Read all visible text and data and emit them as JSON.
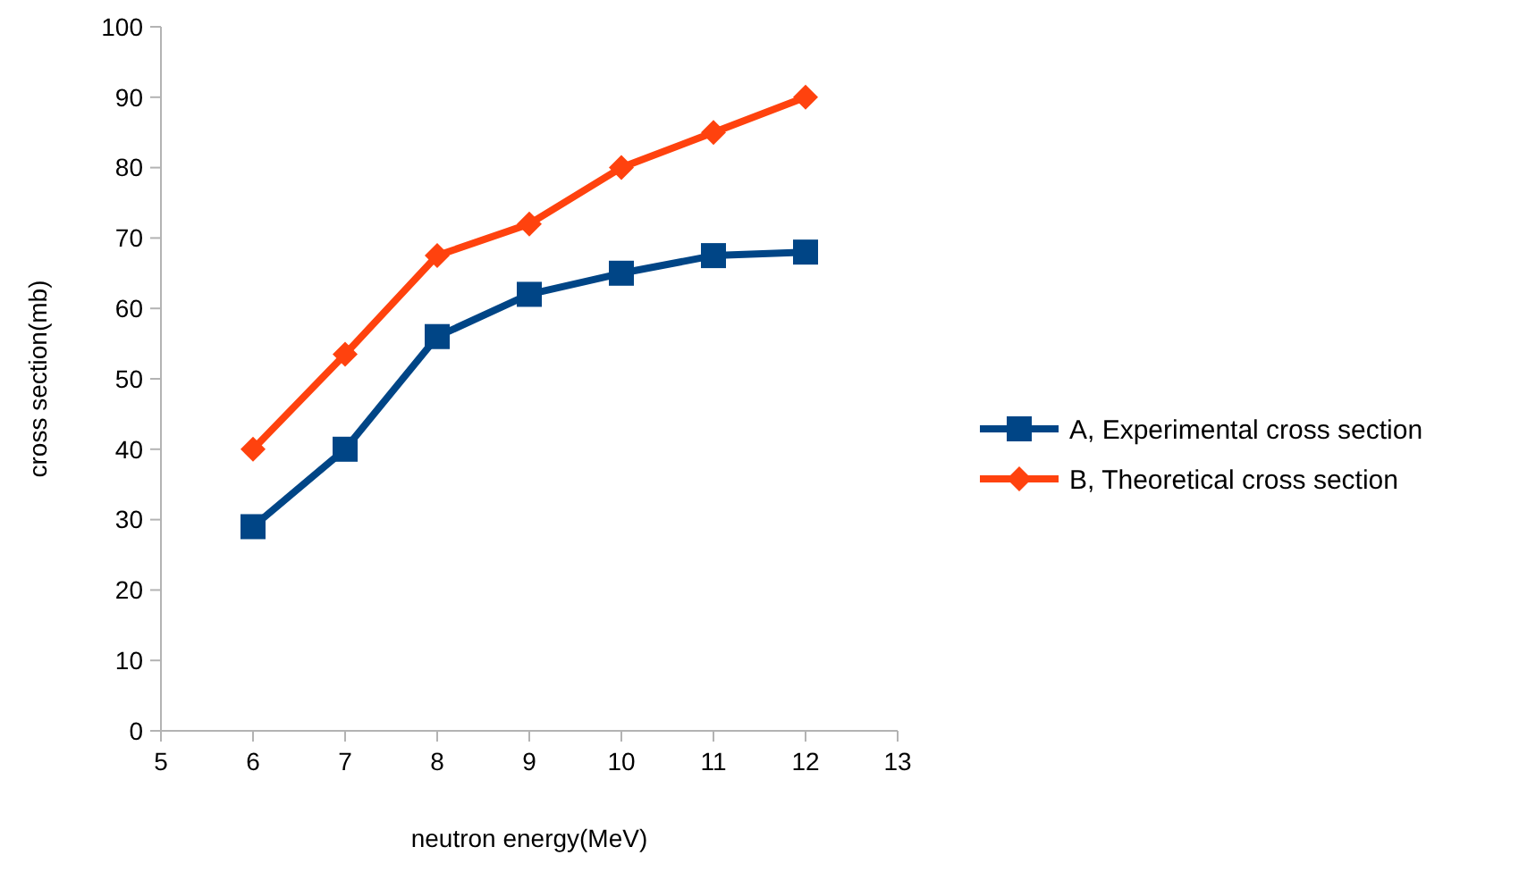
{
  "chart_data": {
    "type": "line",
    "xlabel": "neutron energy(MeV)",
    "ylabel": "cross section(mb)",
    "x": [
      6,
      7,
      8,
      9,
      10,
      11,
      12
    ],
    "xlim": [
      5,
      13
    ],
    "xticks": [
      5,
      6,
      7,
      8,
      9,
      10,
      11,
      12,
      13
    ],
    "ylim": [
      0,
      100
    ],
    "yticks": [
      0,
      10,
      20,
      30,
      40,
      50,
      60,
      70,
      80,
      90,
      100
    ],
    "grid": false,
    "legend": "right",
    "series": [
      {
        "name": "A, Experimental cross section",
        "color": "#004586",
        "marker": "square",
        "values": [
          29,
          40,
          56,
          62,
          65,
          67.5,
          68
        ]
      },
      {
        "name": "B, Theoretical cross section",
        "color": "#ff420e",
        "marker": "diamond",
        "values": [
          40,
          53.5,
          67.5,
          72,
          80,
          85,
          90
        ]
      }
    ]
  }
}
